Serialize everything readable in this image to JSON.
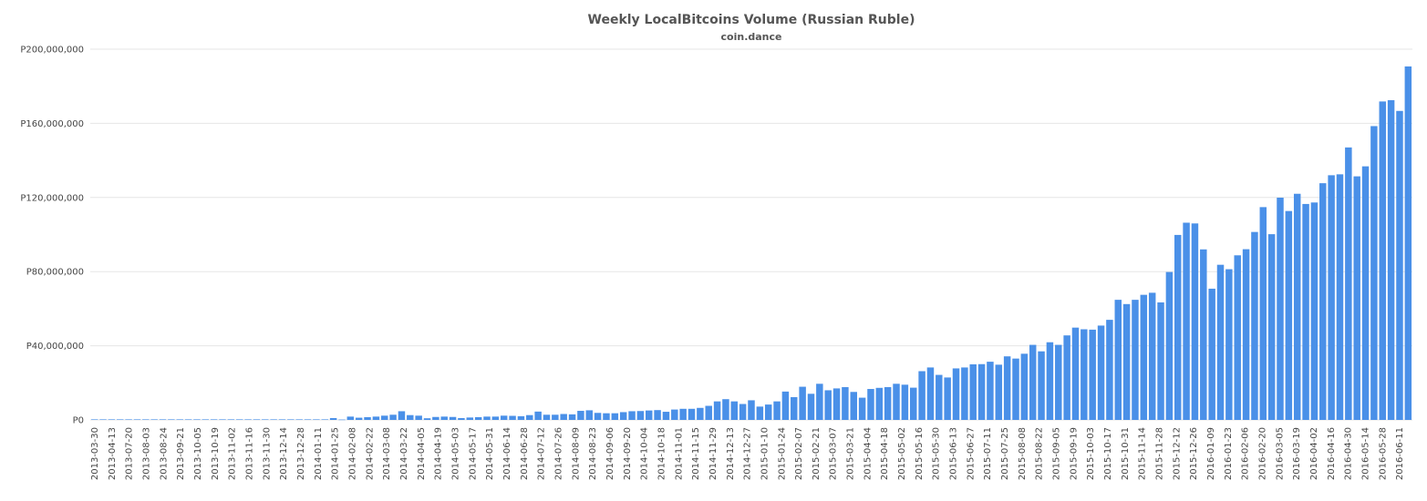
{
  "chart_data": {
    "type": "bar",
    "title": "Weekly LocalBitcoins Volume (Russian Ruble)",
    "subtitle": "coin.dance",
    "xlabel": "",
    "ylabel": "",
    "ylim": [
      0,
      200000000
    ],
    "yticks": [
      0,
      40000000,
      80000000,
      120000000,
      160000000,
      200000000
    ],
    "ytick_labels": [
      "P0",
      "P40,000,000",
      "P80,000,000",
      "P120,000,000",
      "P160,000,000",
      "P200,000,000"
    ],
    "grid": true,
    "legend": "none",
    "bar_color": "#4a90e8",
    "x_tick_labels": [
      "2013-03-30",
      "2013-04-13",
      "2013-07-20",
      "2013-08-03",
      "2013-08-24",
      "2013-09-21",
      "2013-10-05",
      "2013-10-19",
      "2013-11-02",
      "2013-11-16",
      "2013-11-30",
      "2013-12-14",
      "2013-12-28",
      "2014-01-11",
      "2014-01-25",
      "2014-02-08",
      "2014-02-22",
      "2014-03-08",
      "2014-03-22",
      "2014-04-05",
      "2014-04-19",
      "2014-05-03",
      "2014-05-17",
      "2014-05-31",
      "2014-06-14",
      "2014-06-28",
      "2014-07-12",
      "2014-07-26",
      "2014-08-09",
      "2014-08-23",
      "2014-09-06",
      "2014-09-20",
      "2014-10-04",
      "2014-10-18",
      "2014-11-01",
      "2014-11-15",
      "2014-11-29",
      "2014-12-13",
      "2014-12-27",
      "2015-01-10",
      "2015-01-24",
      "2015-02-07",
      "2015-02-21",
      "2015-03-07",
      "2015-03-21",
      "2015-04-04",
      "2015-04-18",
      "2015-05-02",
      "2015-05-16",
      "2015-05-30",
      "2015-06-13",
      "2015-06-27",
      "2015-07-11",
      "2015-07-25",
      "2015-08-08",
      "2015-08-22",
      "2015-09-05",
      "2015-09-19",
      "2015-10-03",
      "2015-10-17",
      "2015-10-31",
      "2015-11-14",
      "2015-11-28",
      "2015-12-12",
      "2015-12-26",
      "2016-01-09",
      "2016-01-23",
      "2016-02-06",
      "2016-02-20",
      "2016-03-05",
      "2016-03-19",
      "2016-04-02",
      "2016-04-16",
      "2016-04-30",
      "2016-05-14",
      "2016-05-28",
      "2016-06-11"
    ],
    "values": [
      300000,
      300000,
      300000,
      300000,
      300000,
      300000,
      300000,
      300000,
      300000,
      300000,
      300000,
      300000,
      300000,
      300000,
      300000,
      300000,
      300000,
      300000,
      300000,
      300000,
      300000,
      300000,
      300000,
      300000,
      300000,
      300000,
      300000,
      300000,
      1000000,
      200000,
      1800000,
      1200000,
      1500000,
      1800000,
      2300000,
      2800000,
      4700000,
      2600000,
      2300000,
      900000,
      1600000,
      1800000,
      1600000,
      1000000,
      1300000,
      1500000,
      1800000,
      1800000,
      2300000,
      2200000,
      2000000,
      2600000,
      4500000,
      2800000,
      2800000,
      3200000,
      3000000,
      4900000,
      5200000,
      3800000,
      3600000,
      3600000,
      4200000,
      4700000,
      4800000,
      5100000,
      5300000,
      4400000,
      5600000,
      6000000,
      6000000,
      6500000,
      7600000,
      10000000,
      11200000,
      10000000,
      8600000,
      10600000,
      7200000,
      8300000,
      10000000,
      15300000,
      12300000,
      17900000,
      14100000,
      19500000,
      16000000,
      17000000,
      17700000,
      15100000,
      12000000,
      16700000,
      17300000,
      17700000,
      19500000,
      19000000,
      17400000,
      26300000,
      28300000,
      24300000,
      22900000,
      27800000,
      28300000,
      30000000,
      30100000,
      31400000,
      29800000,
      34300000,
      33100000,
      35700000,
      40500000,
      37000000,
      41900000,
      40500000,
      45600000,
      49800000,
      48900000,
      48700000,
      50900000,
      54000000,
      64800000,
      62500000,
      64800000,
      67500000,
      68600000,
      63400000,
      79800000,
      99800000,
      106400000,
      106000000,
      92000000,
      70800000,
      83700000,
      81300000,
      88800000,
      92100000,
      101400000,
      114800000,
      100200000,
      119900000,
      112700000,
      122000000,
      116500000,
      117300000,
      127700000,
      132000000,
      132500000,
      147000000,
      131400000,
      136800000,
      158500000,
      171800000,
      172500000,
      166700000,
      190700000
    ]
  }
}
